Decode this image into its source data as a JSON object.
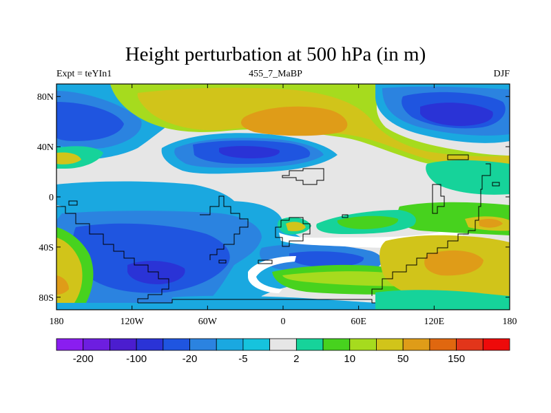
{
  "title": "Height perturbation at 500 hPa (in m)",
  "subtitle_left": "Expt = teYIn1",
  "subtitle_center": "455_7_MaBP",
  "subtitle_right": "DJF",
  "x_ticks": [
    {
      "lon": -180,
      "label": "180"
    },
    {
      "lon": -120,
      "label": "120W"
    },
    {
      "lon": -60,
      "label": "60W"
    },
    {
      "lon": 0,
      "label": "0"
    },
    {
      "lon": 60,
      "label": "60E"
    },
    {
      "lon": 120,
      "label": "120E"
    },
    {
      "lon": 180,
      "label": "180"
    }
  ],
  "y_ticks": [
    {
      "lat": 80,
      "label": "80N"
    },
    {
      "lat": 40,
      "label": "40N"
    },
    {
      "lat": 0,
      "label": "0"
    },
    {
      "lat": -40,
      "label": "40S"
    },
    {
      "lat": -80,
      "label": "80S"
    }
  ],
  "colorbar": {
    "colors": [
      "#8a1df0",
      "#6d1ee0",
      "#4b1dcf",
      "#2a33d6",
      "#1f55e0",
      "#2b83e0",
      "#1aa8e0",
      "#16c3dd",
      "#e6e6e6",
      "#16d39a",
      "#47d21e",
      "#a6db1e",
      "#d1c41a",
      "#df9c18",
      "#e0670f",
      "#e2351a",
      "#ee0a0a"
    ],
    "labels": [
      {
        "boundary": 1,
        "text": "-200"
      },
      {
        "boundary": 3,
        "text": "-100"
      },
      {
        "boundary": 5,
        "text": "-20"
      },
      {
        "boundary": 7,
        "text": "-5"
      },
      {
        "boundary": 9,
        "text": "2"
      },
      {
        "boundary": 11,
        "text": "10"
      },
      {
        "boundary": 13,
        "text": "50"
      },
      {
        "boundary": 15,
        "text": "150"
      }
    ]
  },
  "map_colors": {
    "neutral": "#e6e6e6",
    "blue_dark": "#2a33d6",
    "blue_mid": "#1f55e0",
    "blue_light": "#2b83e0",
    "cyan_blue": "#1aa8e0",
    "cyan": "#16c3dd",
    "teal": "#16d39a",
    "green": "#47d21e",
    "yellow_green": "#a6db1e",
    "yellow": "#d1c41a",
    "orange": "#df9c18",
    "white": "#ffffff"
  }
}
